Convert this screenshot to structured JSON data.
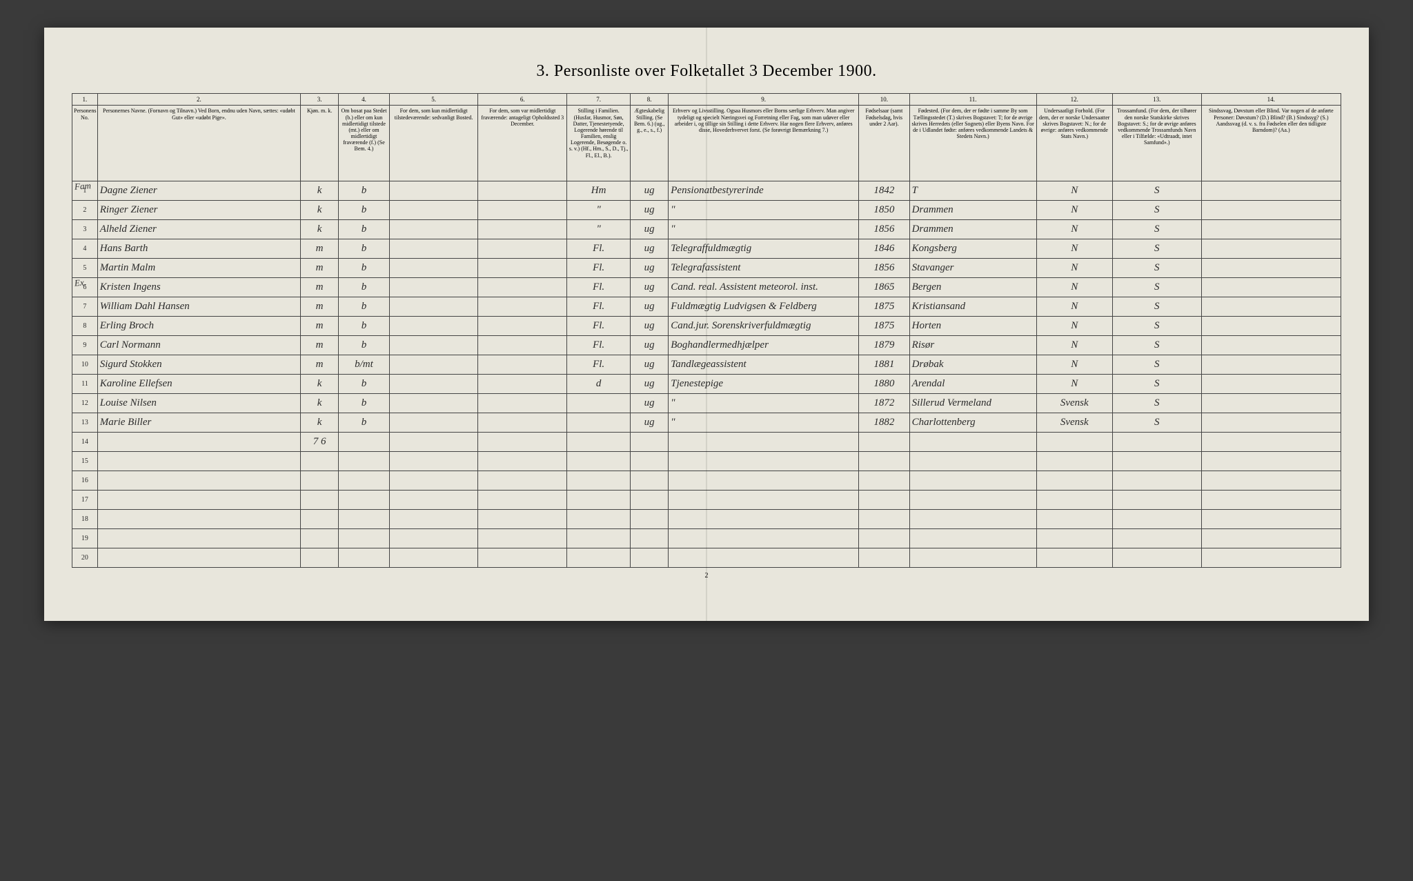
{
  "title": "3. Personliste over Folketallet 3 December 1900.",
  "page_number": "2",
  "margin_note_1": "Fam",
  "margin_note_2": "Ex.",
  "column_numbers": [
    "1.",
    "2.",
    "3.",
    "4.",
    "5.",
    "6.",
    "7.",
    "8.",
    "9.",
    "10.",
    "11.",
    "12.",
    "13.",
    "14."
  ],
  "column_heads": [
    "Personens No.",
    "Personernes Navne.\n(Fornavn og Tilnavn.)\nVed Born, endnu uden Navn, sættes: «udøbt Gut» eller «udøbt Pige».",
    "Kjøn.\nm. k.",
    "Om bosat paa Stedet (b.) eller om kun midlertidigt tilstede (mt.) eller om midlertidigt fraværende (f.)\n(Se Bem. 4.)",
    "For dem, som kun midlertidigt tilstedeværende:\nsedvanligt Bosted.",
    "For dem, som var midlertidigt fraværende:\nantageligt Opholdssted\n3 December.",
    "Stilling i Familien.\n(Husfar, Husmor, Søn, Datter, Tjenestetyende, Logerende hørende til Familien, enslig Logerende, Besøgende o. s. v.)\n(Hf., Hm., S., D., Tj., Fl., El., B.).",
    "Ægteskabelig Stilling.\n(Se Bem. 6.)\n(ug., g., e., s., f.)",
    "Erhverv og Livsstilling.\nOgsaa Husmors eller Borns særlige Erhverv.\nMan angiver tydeligt og specielt Næringsvei og Forretning eller Fag, som man udøver eller arbeider i, og tillige sin Stilling i dette Erhverv.\nHar nogen flere Erhverv, anføres disse, Hovederhvervet forst.\n(Se forøvrigt Bemærkning 7.)",
    "Fødselsaar\n(samt Fødselsdag, hvis under 2 Aar).",
    "Fødested.\n(For dem, der er fødte i samme By som Tællingsstedet (T.) skrives Bogstavet: T;\nfor de øvrige skrives Herredets (eller Sognets) eller Byens Navn.\nFor de i Udlandet fødte: anføres vedkommende Landets & Stedets Navn.)",
    "Undersaatligt Forhold.\n(For dem, der er norske Undersaatter skrives Bogstavet: N.; for de øvrige: anføres vedkommende Stats Navn.)",
    "Trossamfund.\n(For dem, der tilhører den norske Statskirke skrives Bogstavet: S.;\nfor de øvrige anføres vedkommende Trossamfunds Navn eller i Tilfælde: «Udtraadt, intet Samfund».)",
    "Sindssvag, Døvstum eller Blind.\nVar nogen af de anførte Personer:\nDøvstum? (D.)\nBlind? (B.)\nSindssyg? (S.)\nAandssvag (d. v. s. fra Fødselen eller den tidligste Barndom)? (Aa.)"
  ],
  "col_widths": [
    "2%",
    "16%",
    "3%",
    "4%",
    "7%",
    "7%",
    "5%",
    "3%",
    "15%",
    "4%",
    "10%",
    "6%",
    "7%",
    "11%"
  ],
  "rows": [
    {
      "n": "1",
      "name": "Dagne Ziener",
      "sex": "k",
      "res": "b",
      "c5": "",
      "c6": "",
      "fam": "Hm",
      "mar": "ug",
      "occ": "Pensionatbestyrerinde",
      "yr": "1842",
      "bp": "T",
      "nat": "N",
      "rel": "S",
      "dis": ""
    },
    {
      "n": "2",
      "name": "Ringer Ziener",
      "sex": "k",
      "res": "b",
      "c5": "",
      "c6": "",
      "fam": "\"",
      "mar": "ug",
      "occ": "\"",
      "yr": "1850",
      "bp": "Drammen",
      "nat": "N",
      "rel": "S",
      "dis": ""
    },
    {
      "n": "3",
      "name": "Alheld Ziener",
      "sex": "k",
      "res": "b",
      "c5": "",
      "c6": "",
      "fam": "\"",
      "mar": "ug",
      "occ": "\"",
      "yr": "1856",
      "bp": "Drammen",
      "nat": "N",
      "rel": "S",
      "dis": ""
    },
    {
      "n": "4",
      "name": "Hans Barth",
      "sex": "m",
      "res": "b",
      "c5": "",
      "c6": "",
      "fam": "Fl.",
      "mar": "ug",
      "occ": "Telegraffuldmægtig",
      "yr": "1846",
      "bp": "Kongsberg",
      "nat": "N",
      "rel": "S",
      "dis": ""
    },
    {
      "n": "5",
      "name": "Martin Malm",
      "sex": "m",
      "res": "b",
      "c5": "",
      "c6": "",
      "fam": "Fl.",
      "mar": "ug",
      "occ": "Telegrafassistent",
      "yr": "1856",
      "bp": "Stavanger",
      "nat": "N",
      "rel": "S",
      "dis": ""
    },
    {
      "n": "6",
      "name": "Kristen Ingens",
      "sex": "m",
      "res": "b",
      "c5": "",
      "c6": "",
      "fam": "Fl.",
      "mar": "ug",
      "occ": "Cand. real. Assistent meteorol. inst.",
      "yr": "1865",
      "bp": "Bergen",
      "nat": "N",
      "rel": "S",
      "dis": ""
    },
    {
      "n": "7",
      "name": "William Dahl Hansen",
      "sex": "m",
      "res": "b",
      "c5": "",
      "c6": "",
      "fam": "Fl.",
      "mar": "ug",
      "occ": "Fuldmægtig Ludvigsen & Feldberg",
      "yr": "1875",
      "bp": "Kristiansand",
      "nat": "N",
      "rel": "S",
      "dis": ""
    },
    {
      "n": "8",
      "name": "Erling Broch",
      "sex": "m",
      "res": "b",
      "c5": "",
      "c6": "",
      "fam": "Fl.",
      "mar": "ug",
      "occ": "Cand.jur. Sorenskriverfuldmægtig",
      "yr": "1875",
      "bp": "Horten",
      "nat": "N",
      "rel": "S",
      "dis": ""
    },
    {
      "n": "9",
      "name": "Carl Normann",
      "sex": "m",
      "res": "b",
      "c5": "",
      "c6": "",
      "fam": "Fl.",
      "mar": "ug",
      "occ": "Boghandlermedhjælper",
      "yr": "1879",
      "bp": "Risør",
      "nat": "N",
      "rel": "S",
      "dis": ""
    },
    {
      "n": "10",
      "name": "Sigurd Stokken",
      "sex": "m",
      "res": "b/mt",
      "c5": "",
      "c6": "",
      "fam": "Fl.",
      "mar": "ug",
      "occ": "Tandlægeassistent",
      "yr": "1881",
      "bp": "Drøbak",
      "nat": "N",
      "rel": "S",
      "dis": ""
    },
    {
      "n": "11",
      "name": "Karoline Ellefsen",
      "sex": "k",
      "res": "b",
      "c5": "",
      "c6": "",
      "fam": "d",
      "mar": "ug",
      "occ": "Tjenestepige",
      "yr": "1880",
      "bp": "Arendal",
      "nat": "N",
      "rel": "S",
      "dis": ""
    },
    {
      "n": "12",
      "name": "Louise Nilsen",
      "sex": "k",
      "res": "b",
      "c5": "",
      "c6": "",
      "fam": "",
      "mar": "ug",
      "occ": "\"",
      "yr": "1872",
      "bp": "Sillerud Vermeland",
      "nat": "Svensk",
      "rel": "S",
      "dis": ""
    },
    {
      "n": "13",
      "name": "Marie Biller",
      "sex": "k",
      "res": "b",
      "c5": "",
      "c6": "",
      "fam": "",
      "mar": "ug",
      "occ": "\"",
      "yr": "1882",
      "bp": "Charlottenberg",
      "nat": "Svensk",
      "rel": "S",
      "dis": ""
    },
    {
      "n": "14",
      "name": "",
      "sex": "7 6",
      "res": "",
      "c5": "",
      "c6": "",
      "fam": "",
      "mar": "",
      "occ": "",
      "yr": "",
      "bp": "",
      "nat": "",
      "rel": "",
      "dis": ""
    },
    {
      "n": "15",
      "name": "",
      "sex": "",
      "res": "",
      "c5": "",
      "c6": "",
      "fam": "",
      "mar": "",
      "occ": "",
      "yr": "",
      "bp": "",
      "nat": "",
      "rel": "",
      "dis": ""
    },
    {
      "n": "16",
      "name": "",
      "sex": "",
      "res": "",
      "c5": "",
      "c6": "",
      "fam": "",
      "mar": "",
      "occ": "",
      "yr": "",
      "bp": "",
      "nat": "",
      "rel": "",
      "dis": ""
    },
    {
      "n": "17",
      "name": "",
      "sex": "",
      "res": "",
      "c5": "",
      "c6": "",
      "fam": "",
      "mar": "",
      "occ": "",
      "yr": "",
      "bp": "",
      "nat": "",
      "rel": "",
      "dis": ""
    },
    {
      "n": "18",
      "name": "",
      "sex": "",
      "res": "",
      "c5": "",
      "c6": "",
      "fam": "",
      "mar": "",
      "occ": "",
      "yr": "",
      "bp": "",
      "nat": "",
      "rel": "",
      "dis": ""
    },
    {
      "n": "19",
      "name": "",
      "sex": "",
      "res": "",
      "c5": "",
      "c6": "",
      "fam": "",
      "mar": "",
      "occ": "",
      "yr": "",
      "bp": "",
      "nat": "",
      "rel": "",
      "dis": ""
    },
    {
      "n": "20",
      "name": "",
      "sex": "",
      "res": "",
      "c5": "",
      "c6": "",
      "fam": "",
      "mar": "",
      "occ": "",
      "yr": "",
      "bp": "",
      "nat": "",
      "rel": "",
      "dis": ""
    }
  ]
}
